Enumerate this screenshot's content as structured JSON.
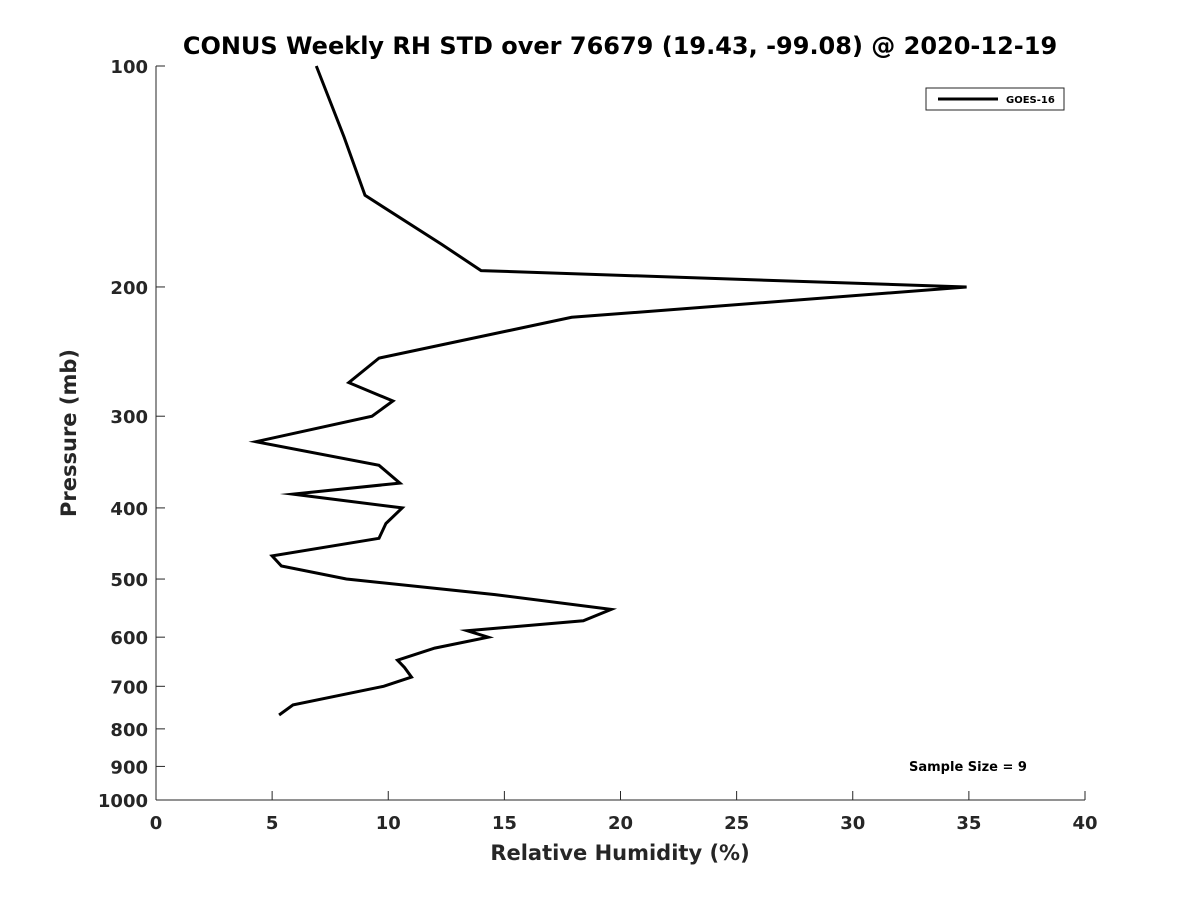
{
  "chart_data": {
    "type": "line",
    "title": "CONUS Weekly RH STD over 76679 (19.43, -99.08) @ 2020-12-19",
    "xlabel": "Relative Humidity (%)",
    "ylabel": "Pressure (mb)",
    "xlim": [
      0,
      40
    ],
    "ylim": [
      100,
      1000
    ],
    "yscale": "log",
    "y_reversed": true,
    "xticks": [
      0,
      5,
      10,
      15,
      20,
      25,
      30,
      35,
      40
    ],
    "xtick_labels": [
      "0",
      "5",
      "10",
      "15",
      "20",
      "25",
      "30",
      "35",
      "40"
    ],
    "yticks": [
      100,
      200,
      300,
      400,
      500,
      600,
      700,
      800,
      900,
      1000
    ],
    "ytick_labels": [
      "100",
      "200",
      "300",
      "400",
      "500",
      "600",
      "700",
      "800",
      "900",
      "1000"
    ],
    "grid": false,
    "legend_position": "top-right",
    "series": [
      {
        "name": "GOES-16",
        "color": "#000000",
        "x": [
          6.9,
          8.1,
          9.0,
          12.3,
          14.0,
          34.9,
          17.9,
          9.6,
          8.3,
          10.2,
          9.3,
          4.3,
          9.6,
          10.5,
          5.9,
          10.6,
          9.9,
          9.6,
          5.0,
          5.4,
          8.2,
          14.6,
          19.6,
          18.4,
          13.4,
          14.3,
          12.0,
          10.4,
          10.7,
          11.0,
          9.8,
          5.9,
          5.3
        ],
        "y": [
          100,
          125,
          150,
          175,
          190,
          200,
          220,
          250,
          270,
          286,
          300,
          325,
          350,
          370,
          383,
          400,
          420,
          440,
          465,
          480,
          500,
          525,
          550,
          570,
          588,
          600,
          621,
          645,
          660,
          680,
          700,
          742,
          766
        ]
      }
    ],
    "annotations": [
      "Sample Size = 9"
    ]
  }
}
